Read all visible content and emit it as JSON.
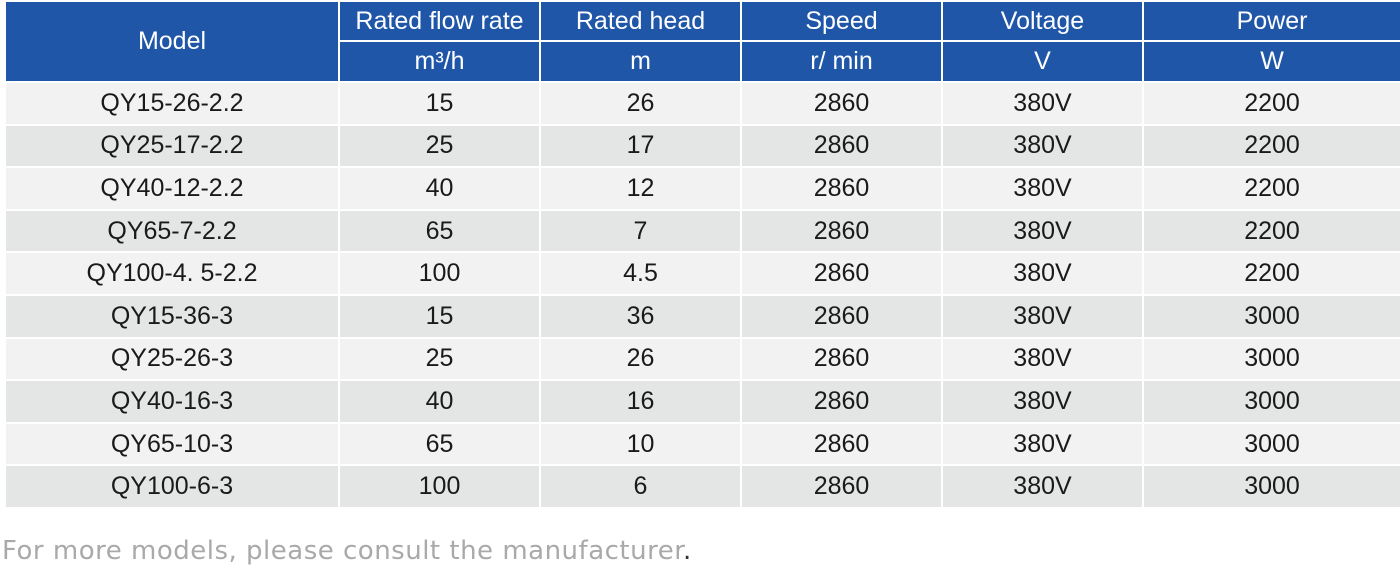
{
  "table": {
    "model_header": "Model",
    "columns": [
      {
        "title": "Rated flow rate",
        "unit": "m³/h"
      },
      {
        "title": "Rated head",
        "unit": "m"
      },
      {
        "title": "Speed",
        "unit": "r/ min"
      },
      {
        "title": "Voltage",
        "unit": "V"
      },
      {
        "title": "Power",
        "unit": "W"
      }
    ],
    "rows": [
      {
        "model": "QY15-26-2.2",
        "flow": "15",
        "head": "26",
        "speed": "2860",
        "voltage": "380V",
        "power": "2200"
      },
      {
        "model": "QY25-17-2.2",
        "flow": "25",
        "head": "17",
        "speed": "2860",
        "voltage": "380V",
        "power": "2200"
      },
      {
        "model": "QY40-12-2.2",
        "flow": "40",
        "head": "12",
        "speed": "2860",
        "voltage": "380V",
        "power": "2200"
      },
      {
        "model": "QY65-7-2.2",
        "flow": "65",
        "head": "7",
        "speed": "2860",
        "voltage": "380V",
        "power": "2200"
      },
      {
        "model": "QY100-4. 5-2.2",
        "flow": "100",
        "head": "4.5",
        "speed": "2860",
        "voltage": "380V",
        "power": "2200"
      },
      {
        "model": "QY15-36-3",
        "flow": "15",
        "head": "36",
        "speed": "2860",
        "voltage": "380V",
        "power": "3000"
      },
      {
        "model": "QY25-26-3",
        "flow": "25",
        "head": "26",
        "speed": "2860",
        "voltage": "380V",
        "power": "3000"
      },
      {
        "model": "QY40-16-3",
        "flow": "40",
        "head": "16",
        "speed": "2860",
        "voltage": "380V",
        "power": "3000"
      },
      {
        "model": "QY65-10-3",
        "flow": "65",
        "head": "10",
        "speed": "2860",
        "voltage": "380V",
        "power": "3000"
      },
      {
        "model": "QY100-6-3",
        "flow": "100",
        "head": "6",
        "speed": "2860",
        "voltage": "380V",
        "power": "3000"
      }
    ]
  },
  "note": {
    "text": "For more models, please consult the manufacturer",
    "end": "."
  },
  "colors": {
    "header_bg": "#1f56a8",
    "row_light": "#f2f2f2",
    "row_dark": "#e3e6e4",
    "note_text": "#a9a9a9"
  }
}
